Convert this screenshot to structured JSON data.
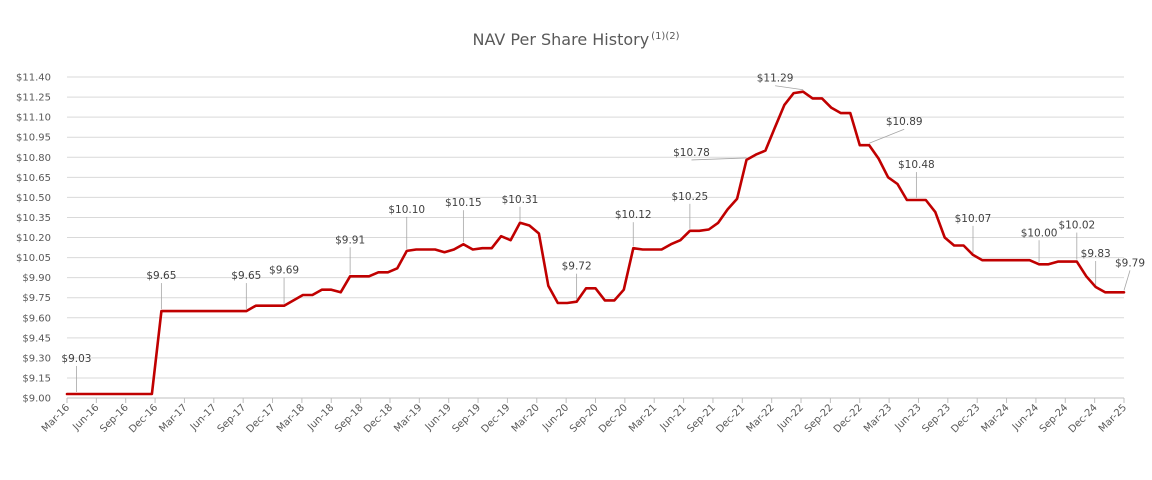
{
  "chart_data": {
    "type": "line",
    "title": "NAV Per Share History",
    "title_footnotes": "(1)(2)",
    "xlabel": "",
    "ylabel": "",
    "ylim": [
      9.0,
      11.4
    ],
    "y_ticks": [
      "$9.00",
      "$9.15",
      "$9.30",
      "$9.45",
      "$9.60",
      "$9.75",
      "$9.90",
      "$10.05",
      "$10.20",
      "$10.35",
      "$10.50",
      "$10.65",
      "$10.80",
      "$10.95",
      "$11.10",
      "$11.25",
      "$11.40"
    ],
    "x_ticks": [
      "Mar-16",
      "Jun-16",
      "Sep-16",
      "Dec-16",
      "Mar-17",
      "Jun-17",
      "Sep-17",
      "Dec-17",
      "Mar-18",
      "Jun-18",
      "Sep-18",
      "Dec-18",
      "Mar-19",
      "Jun-19",
      "Sep-19",
      "Dec-19",
      "Mar-20",
      "Jun-20",
      "Sep-20",
      "Dec-20",
      "Mar-21",
      "Jun-21",
      "Sep-21",
      "Dec-21",
      "Mar-22",
      "Jun-22",
      "Sep-22",
      "Dec-22",
      "Mar-23",
      "Jun-23",
      "Sep-23",
      "Dec-23",
      "Mar-24",
      "Jun-24",
      "Sep-24",
      "Dec-24",
      "Mar-25"
    ],
    "series": [
      {
        "name": "NAV per share",
        "color": "#c00000",
        "values": [
          9.03,
          9.03,
          9.03,
          9.03,
          9.03,
          9.03,
          9.03,
          9.03,
          9.03,
          9.03,
          9.65,
          9.65,
          9.65,
          9.65,
          9.65,
          9.65,
          9.65,
          9.65,
          9.65,
          9.65,
          9.69,
          9.69,
          9.69,
          9.69,
          9.73,
          9.77,
          9.77,
          9.81,
          9.81,
          9.79,
          9.91,
          9.91,
          9.91,
          9.94,
          9.94,
          9.97,
          10.1,
          10.11,
          10.11,
          10.11,
          10.09,
          10.11,
          10.15,
          10.11,
          10.12,
          10.12,
          10.21,
          10.18,
          10.31,
          10.29,
          10.23,
          9.84,
          9.71,
          9.71,
          9.72,
          9.82,
          9.82,
          9.73,
          9.73,
          9.81,
          10.12,
          10.11,
          10.11,
          10.11,
          10.15,
          10.18,
          10.25,
          10.25,
          10.26,
          10.31,
          10.41,
          10.49,
          10.78,
          10.82,
          10.85,
          11.02,
          11.19,
          11.28,
          11.29,
          11.24,
          11.24,
          11.17,
          11.13,
          11.13,
          10.89,
          10.89,
          10.79,
          10.65,
          10.6,
          10.48,
          10.48,
          10.48,
          10.39,
          10.2,
          10.14,
          10.14,
          10.07,
          10.03,
          10.03,
          10.03,
          10.03,
          10.03,
          10.03,
          10.0,
          10.0,
          10.02,
          10.02,
          10.02,
          9.91,
          9.83,
          9.79,
          9.79,
          9.79
        ]
      }
    ],
    "data_labels": [
      {
        "text": "$9.03",
        "index": 1
      },
      {
        "text": "$9.65",
        "index": 10
      },
      {
        "text": "$9.65",
        "index": 19
      },
      {
        "text": "$9.69",
        "index": 23
      },
      {
        "text": "$9.91",
        "index": 30
      },
      {
        "text": "$10.10",
        "index": 36
      },
      {
        "text": "$10.15",
        "index": 42
      },
      {
        "text": "$10.31",
        "index": 48
      },
      {
        "text": "$9.72",
        "index": 54
      },
      {
        "text": "$10.12",
        "index": 60
      },
      {
        "text": "$10.25",
        "index": 66
      },
      {
        "text": "$10.78",
        "index": 72
      },
      {
        "text": "$11.29",
        "index": 78
      },
      {
        "text": "$10.89",
        "index": 85
      },
      {
        "text": "$10.48",
        "index": 90
      },
      {
        "text": "$10.07",
        "index": 96
      },
      {
        "text": "$10.00",
        "index": 103
      },
      {
        "text": "$10.02",
        "index": 107
      },
      {
        "text": "$9.83",
        "index": 109
      },
      {
        "text": "$9.79",
        "index": 112
      }
    ],
    "grid": true,
    "legend": "none"
  }
}
